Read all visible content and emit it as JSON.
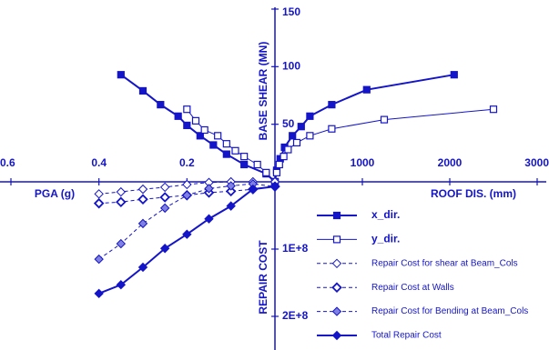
{
  "chart_data": [
    {
      "type": "line",
      "x_label": "ROOF DIS. (mm)",
      "y_label": "BASE SHEAR (MN)",
      "xlim": [
        0,
        3000
      ],
      "ylim": [
        0,
        150
      ],
      "xticks": [
        1000,
        2000,
        3000
      ],
      "yticks": [
        50,
        100,
        150
      ],
      "series": [
        {
          "name": "x_dir.",
          "color": "#1414c8",
          "marker": "square-filled",
          "dash": false,
          "x": [
            0,
            20,
            60,
            110,
            200,
            300,
            400,
            650,
            1050,
            2050
          ],
          "values": [
            0,
            10,
            20,
            30,
            40,
            48,
            57,
            67,
            80,
            93
          ]
        },
        {
          "name": "y_dir.",
          "color": "#1414c8",
          "marker": "square-open",
          "dash": false,
          "x": [
            0,
            20,
            50,
            100,
            150,
            250,
            400,
            650,
            1250,
            2500
          ],
          "values": [
            0,
            8,
            15,
            22,
            28,
            34,
            40,
            46,
            54,
            63
          ]
        }
      ]
    },
    {
      "type": "line",
      "x_label": "PGA (g)",
      "xlim": [
        0.6,
        0
      ],
      "ylim": [
        0,
        150
      ],
      "xticks": [
        0.6,
        0.4,
        0.2
      ],
      "series": [
        {
          "color": "#1414c8",
          "marker": "square-filled",
          "dash": false,
          "x": [
            0.35,
            0.3,
            0.26,
            0.22,
            0.2,
            0.17,
            0.14,
            0.11,
            0.07,
            0.02,
            0
          ],
          "values": [
            93,
            79,
            67,
            57,
            49,
            40,
            32,
            24,
            15,
            7,
            0
          ]
        },
        {
          "color": "#1414c8",
          "marker": "square-open",
          "dash": false,
          "x": [
            0.2,
            0.18,
            0.16,
            0.13,
            0.11,
            0.09,
            0.07,
            0.04,
            0.02,
            0
          ],
          "values": [
            63,
            53,
            45,
            40,
            33,
            27,
            22,
            15,
            8,
            0
          ]
        }
      ]
    },
    {
      "type": "line",
      "y_label": "REPAIR COST",
      "xlim": [
        0.6,
        0
      ],
      "ylim": [
        0,
        250000000
      ],
      "yticks": [
        {
          "value": 100000000,
          "label": "1E+8"
        },
        {
          "value": 200000000,
          "label": "2E+8"
        }
      ],
      "series": [
        {
          "name": "Repair Cost for shear at  Beam_Cols",
          "color": "#1414c8",
          "marker": "diamond-open",
          "dash": true,
          "x": [
            0.4,
            0.35,
            0.3,
            0.25,
            0.2,
            0.15,
            0.1,
            0.05,
            0
          ],
          "values": [
            18000000,
            15000000,
            11000000,
            8000000,
            4000000,
            1000000,
            0,
            0,
            0
          ]
        },
        {
          "name": "Repair Cost at Walls",
          "color": "#1414c8",
          "marker": "diamond-bold",
          "dash": true,
          "x": [
            0.4,
            0.35,
            0.3,
            0.25,
            0.2,
            0.15,
            0.1,
            0.05,
            0
          ],
          "values": [
            32000000,
            30000000,
            26000000,
            23000000,
            20000000,
            16000000,
            14000000,
            11000000,
            7000000
          ]
        },
        {
          "name": "Repair Cost for Bending at Beam_Cols",
          "color": "#1414c8",
          "marker": "diamond-dot",
          "dash": true,
          "x": [
            0.4,
            0.35,
            0.3,
            0.25,
            0.2,
            0.15,
            0.1,
            0.05,
            0
          ],
          "values": [
            115000000,
            92000000,
            62000000,
            39000000,
            20000000,
            10000000,
            6000000,
            3000000,
            7000000
          ]
        },
        {
          "name": "Total Repair Cost",
          "color": "#1414c8",
          "marker": "diamond-filled",
          "dash": false,
          "x": [
            0.4,
            0.35,
            0.3,
            0.25,
            0.2,
            0.15,
            0.1,
            0.05,
            0
          ],
          "values": [
            166000000,
            153000000,
            127000000,
            99000000,
            78000000,
            55000000,
            36000000,
            11000000,
            7000000
          ]
        }
      ]
    }
  ]
}
